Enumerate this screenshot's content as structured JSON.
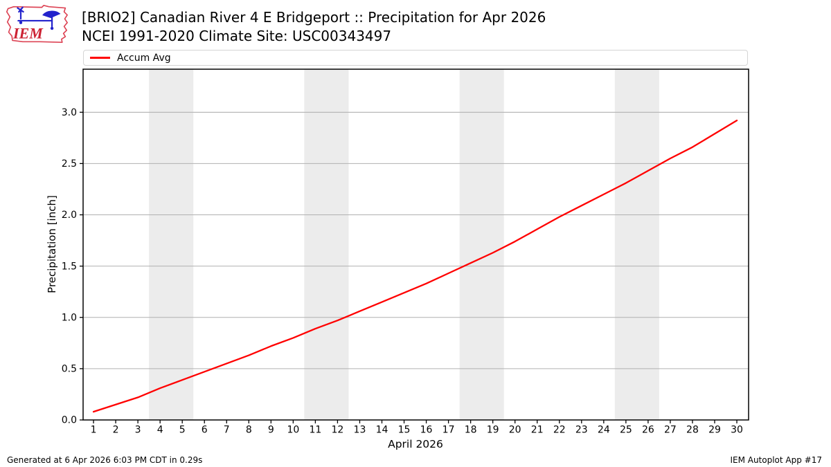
{
  "header": {
    "title_line1": "[BRIO2] Canadian River 4 E Bridgeport :: Precipitation for Apr 2026",
    "title_line2": "NCEI 1991-2020 Climate Site: USC00343497",
    "logo_text": "IEM"
  },
  "legend": {
    "items": [
      {
        "label": "Accum Avg",
        "color": "#ff0000"
      }
    ]
  },
  "footer": {
    "left": "Generated at 6 Apr 2026 6:03 PM CDT in 0.29s",
    "right": "IEM Autoplot App #17"
  },
  "chart_data": {
    "type": "line",
    "title": "[BRIO2] Canadian River 4 E Bridgeport :: Precipitation for Apr 2026",
    "subtitle": "NCEI 1991-2020 Climate Site: USC00343497",
    "xlabel": "April 2026",
    "ylabel": "Precipitation [inch]",
    "x": [
      1,
      2,
      3,
      4,
      5,
      6,
      7,
      8,
      9,
      10,
      11,
      12,
      13,
      14,
      15,
      16,
      17,
      18,
      19,
      20,
      21,
      22,
      23,
      24,
      25,
      26,
      27,
      28,
      29,
      30
    ],
    "series": [
      {
        "name": "Accum Avg",
        "color": "#ff0000",
        "values": [
          0.08,
          0.15,
          0.22,
          0.31,
          0.39,
          0.47,
          0.55,
          0.63,
          0.72,
          0.8,
          0.89,
          0.97,
          1.06,
          1.15,
          1.24,
          1.33,
          1.43,
          1.53,
          1.63,
          1.74,
          1.86,
          1.98,
          2.09,
          2.2,
          2.31,
          2.43,
          2.55,
          2.66,
          2.79,
          2.92
        ]
      }
    ],
    "xlim": [
      0.53,
      30.53
    ],
    "ylim": [
      0,
      3.42
    ],
    "xticks": [
      1,
      2,
      3,
      4,
      5,
      6,
      7,
      8,
      9,
      10,
      11,
      12,
      13,
      14,
      15,
      16,
      17,
      18,
      19,
      20,
      21,
      22,
      23,
      24,
      25,
      26,
      27,
      28,
      29,
      30
    ],
    "yticks": [
      0.0,
      0.5,
      1.0,
      1.5,
      2.0,
      2.5,
      3.0
    ],
    "ytick_labels": [
      "0.0",
      "0.5",
      "1.0",
      "1.5",
      "2.0",
      "2.5",
      "3.0"
    ],
    "grid": "horizontal",
    "legend_position": "top",
    "weekend_bands": [
      [
        3.5,
        5.5
      ],
      [
        10.5,
        12.5
      ],
      [
        17.5,
        19.5
      ],
      [
        24.5,
        26.5
      ]
    ],
    "band_color": "#ececec",
    "grid_color": "#b0b0b0",
    "spine_color": "#000000"
  }
}
